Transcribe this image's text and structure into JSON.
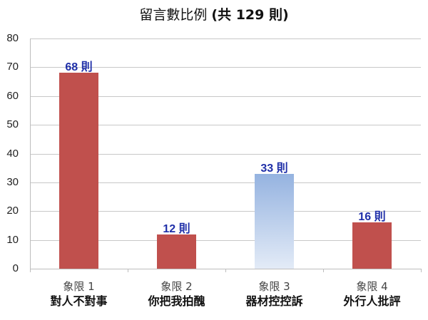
{
  "title": {
    "main": "留言數比例 ",
    "count": "(共 129 則)"
  },
  "chart_data": {
    "type": "bar",
    "title": "留言數比例 (共 129 則)",
    "categories": [
      "象限 1 對人不對事",
      "象限 2 你把我拍醜",
      "象限 3 器材控控訴",
      "象限 4 外行人批評"
    ],
    "category_lines": [
      [
        "象限 1",
        "對人不對事"
      ],
      [
        "象限 2",
        "你把我拍醜"
      ],
      [
        "象限 3",
        "器材控控訴"
      ],
      [
        "象限 4",
        "外行人批評"
      ]
    ],
    "values": [
      68,
      12,
      33,
      16
    ],
    "data_labels": [
      "68 則",
      "12 則",
      "33 則",
      "16 則"
    ],
    "colors": [
      "#c0504d",
      "#c0504d",
      "#95b3e0",
      "#c0504d"
    ],
    "xlabel": "",
    "ylabel": "",
    "ylim": [
      0,
      80
    ],
    "yticks": [
      0,
      10,
      20,
      30,
      40,
      50,
      60,
      70,
      80
    ],
    "grid": true,
    "legend": "none"
  }
}
